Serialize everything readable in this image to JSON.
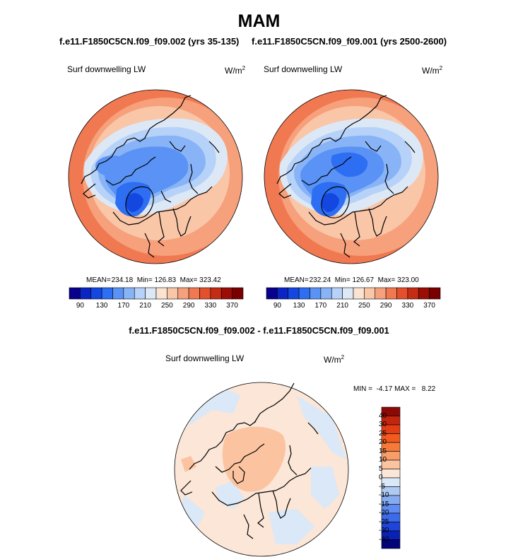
{
  "title": "MAM",
  "panels": [
    {
      "subtitle": "f.e11.F1850C5CN.f09_f09.002 (yrs 35-135)",
      "variable": "Surf downwelling LW",
      "unit_base": "W/m",
      "unit_exp": "2",
      "mean_label": "MEAN=",
      "mean": "234.18",
      "min_label": "Min=",
      "min": "126.83",
      "max_label": "Max=",
      "max": "323.42"
    },
    {
      "subtitle": "f.e11.F1850C5CN.f09_f09.001 (yrs 2500-2600)",
      "variable": "Surf downwelling LW",
      "unit_base": "W/m",
      "unit_exp": "2",
      "mean_label": "MEAN=",
      "mean": "232.24",
      "min_label": "Min=",
      "min": "126.67",
      "max_label": "Max=",
      "max": "323.00"
    }
  ],
  "diff_panel": {
    "subtitle": "f.e11.F1850C5CN.f09_f09.002 - f.e11.F1850C5CN.f09_f09.001",
    "variable": "Surf downwelling LW",
    "unit_base": "W/m",
    "unit_exp": "2",
    "min_label": "MIN =",
    "min": "-4.17",
    "max_label": "MAX =",
    "max": "8.22"
  },
  "chart_data": [
    {
      "type": "heatmap",
      "projection": "north polar stereographic",
      "title": "f.e11.F1850C5CN.f09_f09.002 (yrs 35-135)",
      "variable": "Surf downwelling LW",
      "units": "W/m2",
      "colorbar_levels": [
        90,
        110,
        130,
        150,
        170,
        190,
        210,
        230,
        250,
        270,
        290,
        310,
        330,
        350,
        370
      ],
      "colorbar_tick_labels": [
        "90",
        "130",
        "170",
        "210",
        "250",
        "290",
        "330",
        "370"
      ],
      "colorbar_colors": [
        "#08008c",
        "#0a25c4",
        "#1447e0",
        "#2e6ef2",
        "#5a93f5",
        "#88b4f7",
        "#b7d2f8",
        "#dde8f6",
        "#fbe3d2",
        "#f9c6a8",
        "#f6a07c",
        "#f17951",
        "#e44f2c",
        "#c42c14",
        "#9b0d05",
        "#7a0000"
      ],
      "mean": 234.18,
      "min": 126.83,
      "max": 323.42
    },
    {
      "type": "heatmap",
      "projection": "north polar stereographic",
      "title": "f.e11.F1850C5CN.f09_f09.001 (yrs 2500-2600)",
      "variable": "Surf downwelling LW",
      "units": "W/m2",
      "colorbar_levels": [
        90,
        110,
        130,
        150,
        170,
        190,
        210,
        230,
        250,
        270,
        290,
        310,
        330,
        350,
        370
      ],
      "colorbar_tick_labels": [
        "90",
        "130",
        "170",
        "210",
        "250",
        "290",
        "330",
        "370"
      ],
      "colorbar_colors": [
        "#08008c",
        "#0a25c4",
        "#1447e0",
        "#2e6ef2",
        "#5a93f5",
        "#88b4f7",
        "#b7d2f8",
        "#dde8f6",
        "#fbe3d2",
        "#f9c6a8",
        "#f6a07c",
        "#f17951",
        "#e44f2c",
        "#c42c14",
        "#9b0d05",
        "#7a0000"
      ],
      "mean": 232.24,
      "min": 126.67,
      "max": 323.0
    },
    {
      "type": "heatmap",
      "projection": "north polar stereographic",
      "title": "f.e11.F1850C5CN.f09_f09.002 - f.e11.F1850C5CN.f09_f09.001",
      "variable": "Surf downwelling LW",
      "units": "W/m2",
      "colorbar_levels": [
        40,
        30,
        25,
        20,
        15,
        10,
        5,
        0,
        -5,
        -10,
        -15,
        -20,
        -25,
        -30,
        -40
      ],
      "colorbar_tick_labels": [
        "40",
        "30",
        "25",
        "20",
        "15",
        "10",
        "5",
        "0",
        "-5",
        "-10",
        "-15",
        "-20",
        "-25",
        "-30",
        "-40"
      ],
      "colorbar_colors": [
        "#8c0a05",
        "#c2260f",
        "#e23d15",
        "#f25a20",
        "#f67a3a",
        "#f89d69",
        "#fbc3a0",
        "#fbe6d7",
        "#dae8f7",
        "#aec9f2",
        "#86abf0",
        "#5f8cf0",
        "#3b6aea",
        "#1e45d8",
        "#0a22b4",
        "#03037a"
      ],
      "min": -4.17,
      "max": 8.22
    }
  ]
}
